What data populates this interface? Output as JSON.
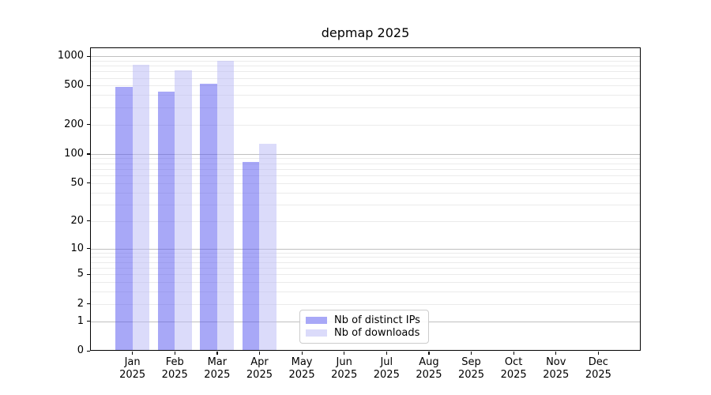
{
  "title": "depmap 2025",
  "chart_data": {
    "type": "bar",
    "title": "depmap 2025",
    "categories": [
      "Jan",
      "Feb",
      "Mar",
      "Apr",
      "May",
      "Jun",
      "Jul",
      "Aug",
      "Sep",
      "Oct",
      "Nov",
      "Dec"
    ],
    "category_year": "2025",
    "x_tick_labels": [
      "Jan 2025",
      "Feb 2025",
      "Mar 2025",
      "Apr 2025",
      "May 2025",
      "Jun 2025",
      "Jul 2025",
      "Aug 2025",
      "Sep 2025",
      "Oct 2025",
      "Nov 2025",
      "Dec 2025"
    ],
    "series": [
      {
        "name": "Nb of distinct IPs",
        "values": [
          485,
          436,
          520,
          83,
          null,
          null,
          null,
          null,
          null,
          null,
          null,
          null
        ],
        "bar_color": "rgba(81,81,239,0.5)",
        "legend_color": "#a8a8f7"
      },
      {
        "name": "Nb of downloads",
        "values": [
          821,
          720,
          891,
          127,
          null,
          null,
          null,
          null,
          null,
          null,
          null,
          null
        ],
        "bar_color": "rgba(183,183,245,0.5)",
        "legend_color": "#dbdbfa"
      }
    ],
    "yscale": "log1p",
    "y_tick_values": [
      0,
      1,
      2,
      5,
      10,
      20,
      50,
      100,
      200,
      500,
      1000
    ],
    "y_tick_labels": [
      "0",
      "1",
      "2",
      "5",
      "10",
      "20",
      "50",
      "100",
      "200",
      "500",
      "1000"
    ],
    "ylim": [
      0,
      1230
    ],
    "xlabel": "",
    "ylabel": "",
    "grid": "horizontal, log majors at 1/10/100/1000 with minors at 2-9 per decade",
    "legend_position": "inside lower-center-left",
    "colors": {
      "grid_major": "#c0c0c0",
      "grid_minor": "#ebebeb",
      "axis": "#000000",
      "background": "#ffffff",
      "text": "#000000"
    }
  }
}
